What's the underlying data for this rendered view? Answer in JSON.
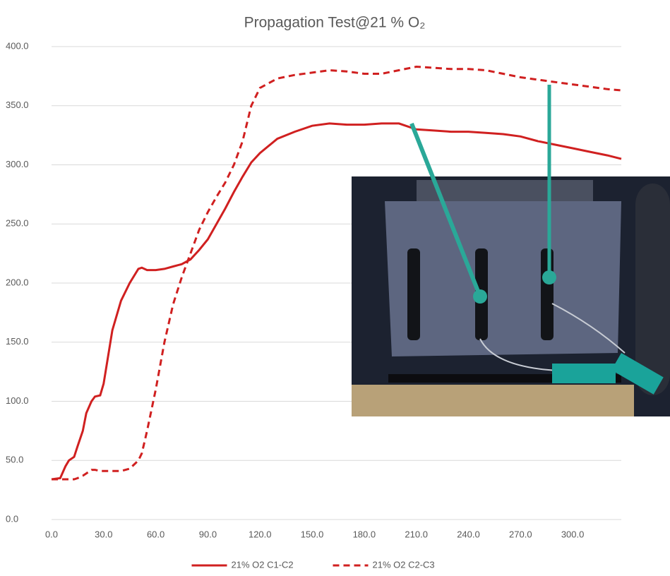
{
  "chart_data": {
    "type": "line",
    "title": "Propagation Test@21 % O₂",
    "x": [
      0,
      5,
      8,
      10,
      13,
      15,
      18,
      20,
      23,
      25,
      28,
      30,
      35,
      40,
      45,
      50,
      52,
      55,
      60,
      65,
      70,
      75,
      80,
      85,
      90,
      95,
      100,
      105,
      110,
      115,
      120,
      130,
      140,
      150,
      160,
      170,
      180,
      190,
      200,
      210,
      220,
      230,
      240,
      250,
      260,
      270,
      280,
      290,
      300,
      310,
      320,
      328
    ],
    "series": [
      {
        "name": "21% O2 C1-C2",
        "color": "#d02020",
        "dash": false,
        "values": [
          34,
          35,
          45,
          50,
          53,
          62,
          75,
          90,
          100,
          104,
          105,
          115,
          160,
          185,
          200,
          212,
          213,
          211,
          211,
          212,
          214,
          216,
          220,
          228,
          237,
          250,
          263,
          277,
          290,
          302,
          310,
          322,
          328,
          333,
          335,
          334,
          334,
          335,
          335,
          330,
          329,
          328,
          328,
          327,
          326,
          324,
          320,
          317,
          314,
          311,
          308,
          305
        ]
      },
      {
        "name": "21% O2 C2-C3",
        "color": "#d02020",
        "dash": true,
        "values": [
          34,
          34,
          34,
          34,
          34,
          35,
          37,
          39,
          42,
          42,
          41,
          41,
          41,
          41,
          43,
          50,
          56,
          75,
          110,
          150,
          182,
          205,
          225,
          245,
          260,
          273,
          285,
          300,
          320,
          350,
          365,
          373,
          376,
          378,
          380,
          379,
          377,
          377,
          380,
          383,
          382,
          381,
          381,
          380,
          377,
          374,
          372,
          370,
          368,
          366,
          364,
          363
        ]
      }
    ],
    "xlim": [
      0,
      328
    ],
    "ylim": [
      0,
      400
    ],
    "xticks": [
      {
        "value": 0,
        "label": "0.0"
      },
      {
        "value": 30,
        "label": "30.0"
      },
      {
        "value": 60,
        "label": "60.0"
      },
      {
        "value": 90,
        "label": "90.0"
      },
      {
        "value": 120,
        "label": "120.0"
      },
      {
        "value": 150,
        "label": "150.0"
      },
      {
        "value": 180,
        "label": "180.0"
      },
      {
        "value": 210,
        "label": "210.0"
      },
      {
        "value": 240,
        "label": "240.0"
      },
      {
        "value": 270,
        "label": "270.0"
      },
      {
        "value": 300,
        "label": "300.0"
      }
    ],
    "yticks": [
      {
        "value": 0,
        "label": "0.0"
      },
      {
        "value": 50,
        "label": "50.0"
      },
      {
        "value": 100,
        "label": "100.0"
      },
      {
        "value": 150,
        "label": "150.0"
      },
      {
        "value": 200,
        "label": "200.0"
      },
      {
        "value": 250,
        "label": "250.0"
      },
      {
        "value": 300,
        "label": "300.0"
      },
      {
        "value": 350,
        "label": "350.0"
      },
      {
        "value": 400,
        "label": "400.0"
      }
    ],
    "grid": true,
    "legend": "bottom"
  }
}
